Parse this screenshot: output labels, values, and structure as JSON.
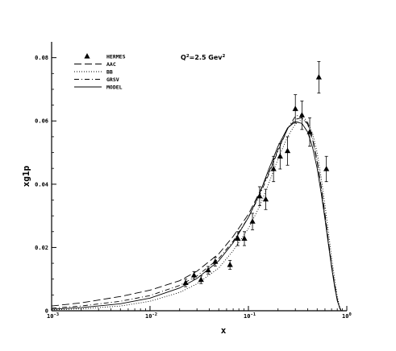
{
  "chart_data": {
    "type": "scatter",
    "title": "",
    "xlabel": "x",
    "ylabel": "xg1p",
    "xscale": "log",
    "xlim": [
      0.001,
      1
    ],
    "ylim": [
      0,
      0.085
    ],
    "grid": false,
    "legend_position": "top-left",
    "annotation": {
      "text": "Q",
      "sup1": "2",
      "rest": "=2.5 Gev",
      "sup2": "2"
    },
    "x_ticks": [
      {
        "value": 0.001,
        "base": "10",
        "exp": "-3"
      },
      {
        "value": 0.01,
        "base": "10",
        "exp": "-2"
      },
      {
        "value": 0.1,
        "base": "10",
        "exp": "-1"
      },
      {
        "value": 1,
        "base": "10",
        "exp": "0"
      }
    ],
    "y_ticks": [
      {
        "value": 0,
        "label": "0"
      },
      {
        "value": 0.02,
        "label": "0.02"
      },
      {
        "value": 0.04,
        "label": "0.04"
      },
      {
        "value": 0.06,
        "label": "0.06"
      },
      {
        "value": 0.08,
        "label": "0.08"
      }
    ],
    "legend": [
      {
        "name": "HERMES",
        "style": "triangle"
      },
      {
        "name": "AAC",
        "style": "longdash"
      },
      {
        "name": "BB",
        "style": "dotted"
      },
      {
        "name": "GRSV",
        "style": "dashdot"
      },
      {
        "name": "MODEL",
        "style": "solid"
      }
    ],
    "points": [
      {
        "x": 0.023,
        "y": 0.0088,
        "err": 0.0012
      },
      {
        "x": 0.028,
        "y": 0.0112,
        "err": 0.0012
      },
      {
        "x": 0.033,
        "y": 0.0098,
        "err": 0.0012
      },
      {
        "x": 0.039,
        "y": 0.0128,
        "err": 0.0012
      },
      {
        "x": 0.046,
        "y": 0.0155,
        "err": 0.0014
      },
      {
        "x": 0.065,
        "y": 0.0145,
        "err": 0.0014
      },
      {
        "x": 0.078,
        "y": 0.0228,
        "err": 0.0022
      },
      {
        "x": 0.091,
        "y": 0.0228,
        "err": 0.0022
      },
      {
        "x": 0.11,
        "y": 0.0282,
        "err": 0.0026
      },
      {
        "x": 0.13,
        "y": 0.0362,
        "err": 0.003
      },
      {
        "x": 0.15,
        "y": 0.0352,
        "err": 0.0032
      },
      {
        "x": 0.18,
        "y": 0.0448,
        "err": 0.004
      },
      {
        "x": 0.21,
        "y": 0.0488,
        "err": 0.004
      },
      {
        "x": 0.25,
        "y": 0.0505,
        "err": 0.0045
      },
      {
        "x": 0.3,
        "y": 0.0638,
        "err": 0.0045
      },
      {
        "x": 0.35,
        "y": 0.0618,
        "err": 0.0045
      },
      {
        "x": 0.42,
        "y": 0.0565,
        "err": 0.0045
      },
      {
        "x": 0.52,
        "y": 0.0738,
        "err": 0.005
      },
      {
        "x": 0.62,
        "y": 0.0448,
        "err": 0.004
      }
    ],
    "series": [
      {
        "name": "AAC",
        "style": "longdash",
        "x": [
          0.001,
          0.002,
          0.005,
          0.01,
          0.02,
          0.03,
          0.05,
          0.07,
          0.1,
          0.13,
          0.16,
          0.2,
          0.25,
          0.3,
          0.35,
          0.4,
          0.45,
          0.5,
          0.55,
          0.6,
          0.65,
          0.7,
          0.75,
          0.8,
          0.85,
          0.88
        ],
        "y": [
          0.0015,
          0.0025,
          0.0045,
          0.0065,
          0.0095,
          0.0125,
          0.018,
          0.0235,
          0.0305,
          0.0375,
          0.0435,
          0.051,
          0.0575,
          0.0605,
          0.061,
          0.059,
          0.054,
          0.047,
          0.039,
          0.0305,
          0.022,
          0.0145,
          0.0085,
          0.0035,
          0.0008,
          0.0
        ]
      },
      {
        "name": "BB",
        "style": "dotted",
        "x": [
          0.001,
          0.002,
          0.005,
          0.01,
          0.02,
          0.03,
          0.05,
          0.07,
          0.1,
          0.13,
          0.16,
          0.2,
          0.25,
          0.3,
          0.35,
          0.4,
          0.45,
          0.5,
          0.55,
          0.6,
          0.65,
          0.7,
          0.75,
          0.8,
          0.85,
          0.88
        ],
        "y": [
          0.0003,
          0.0006,
          0.0015,
          0.003,
          0.0058,
          0.0085,
          0.0135,
          0.019,
          0.026,
          0.033,
          0.04,
          0.048,
          0.055,
          0.059,
          0.0605,
          0.0595,
          0.056,
          0.05,
          0.042,
          0.0335,
          0.025,
          0.017,
          0.0105,
          0.0045,
          0.001,
          0.0
        ]
      },
      {
        "name": "GRSV",
        "style": "dashdot",
        "x": [
          0.001,
          0.002,
          0.005,
          0.01,
          0.02,
          0.03,
          0.05,
          0.07,
          0.1,
          0.13,
          0.16,
          0.2,
          0.25,
          0.3,
          0.35,
          0.4,
          0.45,
          0.5,
          0.55,
          0.6,
          0.65,
          0.7,
          0.75,
          0.8,
          0.85,
          0.88
        ],
        "y": [
          0.0008,
          0.0015,
          0.003,
          0.0048,
          0.008,
          0.011,
          0.0165,
          0.022,
          0.0295,
          0.0365,
          0.043,
          0.0505,
          0.0575,
          0.0615,
          0.062,
          0.0595,
          0.0545,
          0.0475,
          0.039,
          0.0305,
          0.022,
          0.0145,
          0.0085,
          0.0035,
          0.0008,
          0.0
        ]
      },
      {
        "name": "MODEL",
        "style": "solid",
        "x": [
          0.001,
          0.002,
          0.005,
          0.01,
          0.02,
          0.03,
          0.05,
          0.07,
          0.1,
          0.13,
          0.16,
          0.2,
          0.25,
          0.3,
          0.35,
          0.4,
          0.45,
          0.5,
          0.55,
          0.6,
          0.65,
          0.7,
          0.75,
          0.8,
          0.85,
          0.88
        ],
        "y": [
          0.0005,
          0.001,
          0.0022,
          0.004,
          0.0072,
          0.0102,
          0.0158,
          0.0215,
          0.0295,
          0.037,
          0.0445,
          0.052,
          0.0578,
          0.0598,
          0.0592,
          0.0565,
          0.0515,
          0.045,
          0.037,
          0.029,
          0.021,
          0.0138,
          0.0078,
          0.0032,
          0.0007,
          0.0
        ]
      }
    ]
  }
}
